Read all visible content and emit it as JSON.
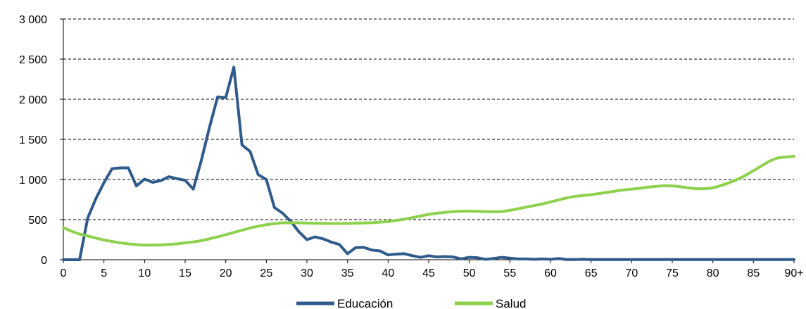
{
  "chart_data": {
    "type": "line",
    "title": "",
    "xlabel": "",
    "ylabel": "",
    "ylim": [
      0,
      3000
    ],
    "xlim": [
      0,
      90
    ],
    "grid": true,
    "legend_position": "bottom",
    "y_ticks": [
      {
        "value": 0,
        "label": "0"
      },
      {
        "value": 500,
        "label": "500"
      },
      {
        "value": 1000,
        "label": "1 000"
      },
      {
        "value": 1500,
        "label": "1 500"
      },
      {
        "value": 2000,
        "label": "2 000"
      },
      {
        "value": 2500,
        "label": "2 500"
      },
      {
        "value": 3000,
        "label": "3 000"
      }
    ],
    "x_ticks": [
      {
        "value": 0,
        "label": "0"
      },
      {
        "value": 5,
        "label": "5"
      },
      {
        "value": 10,
        "label": "10"
      },
      {
        "value": 15,
        "label": "15"
      },
      {
        "value": 20,
        "label": "20"
      },
      {
        "value": 25,
        "label": "25"
      },
      {
        "value": 30,
        "label": "30"
      },
      {
        "value": 35,
        "label": "35"
      },
      {
        "value": 40,
        "label": "40"
      },
      {
        "value": 45,
        "label": "45"
      },
      {
        "value": 50,
        "label": "50"
      },
      {
        "value": 55,
        "label": "55"
      },
      {
        "value": 60,
        "label": "60"
      },
      {
        "value": 65,
        "label": "65"
      },
      {
        "value": 70,
        "label": "70"
      },
      {
        "value": 75,
        "label": "75"
      },
      {
        "value": 80,
        "label": "80"
      },
      {
        "value": 85,
        "label": "85"
      },
      {
        "value": 90,
        "label": "90+"
      }
    ],
    "x": [
      0,
      1,
      2,
      3,
      4,
      5,
      6,
      7,
      8,
      9,
      10,
      11,
      12,
      13,
      14,
      15,
      16,
      17,
      18,
      19,
      20,
      21,
      22,
      23,
      24,
      25,
      26,
      27,
      28,
      29,
      30,
      31,
      32,
      33,
      34,
      35,
      36,
      37,
      38,
      39,
      40,
      41,
      42,
      43,
      44,
      45,
      46,
      47,
      48,
      49,
      50,
      51,
      52,
      53,
      54,
      55,
      56,
      57,
      58,
      59,
      60,
      61,
      62,
      63,
      64,
      65,
      66,
      67,
      68,
      69,
      70,
      71,
      72,
      73,
      74,
      75,
      76,
      77,
      78,
      79,
      80,
      81,
      82,
      83,
      84,
      85,
      86,
      87,
      88,
      89,
      90
    ],
    "series": [
      {
        "name": "Educación",
        "color": "#2f5b8c",
        "values": [
          0,
          0,
          0,
          520,
          760,
          960,
          1135,
          1145,
          1145,
          920,
          1005,
          965,
          985,
          1035,
          1010,
          990,
          880,
          1240,
          1650,
          2030,
          2020,
          2400,
          1430,
          1350,
          1060,
          1000,
          650,
          580,
          480,
          350,
          250,
          285,
          260,
          220,
          190,
          75,
          150,
          155,
          120,
          110,
          60,
          70,
          75,
          50,
          30,
          50,
          35,
          40,
          35,
          10,
          30,
          25,
          5,
          15,
          30,
          20,
          10,
          10,
          5,
          10,
          5,
          15,
          2,
          2,
          5,
          2,
          2,
          2,
          2,
          2,
          2,
          2,
          2,
          2,
          2,
          2,
          2,
          2,
          2,
          2,
          2,
          2,
          2,
          2,
          2,
          2,
          2,
          2,
          2,
          2,
          2
        ]
      },
      {
        "name": "Salud",
        "color": "#8dd14c",
        "values": [
          400,
          355,
          320,
          295,
          270,
          245,
          228,
          210,
          198,
          188,
          182,
          182,
          184,
          190,
          198,
          210,
          222,
          238,
          260,
          285,
          312,
          340,
          368,
          395,
          418,
          437,
          450,
          460,
          462,
          460,
          457,
          455,
          453,
          452,
          452,
          453,
          455,
          458,
          462,
          468,
          475,
          490,
          505,
          525,
          545,
          565,
          580,
          590,
          600,
          605,
          606,
          604,
          600,
          598,
          600,
          615,
          635,
          655,
          675,
          695,
          720,
          745,
          770,
          790,
          800,
          810,
          825,
          840,
          855,
          870,
          880,
          890,
          905,
          915,
          922,
          920,
          910,
          895,
          885,
          885,
          895,
          925,
          960,
          1000,
          1050,
          1110,
          1170,
          1230,
          1270,
          1280,
          1290
        ]
      }
    ]
  }
}
